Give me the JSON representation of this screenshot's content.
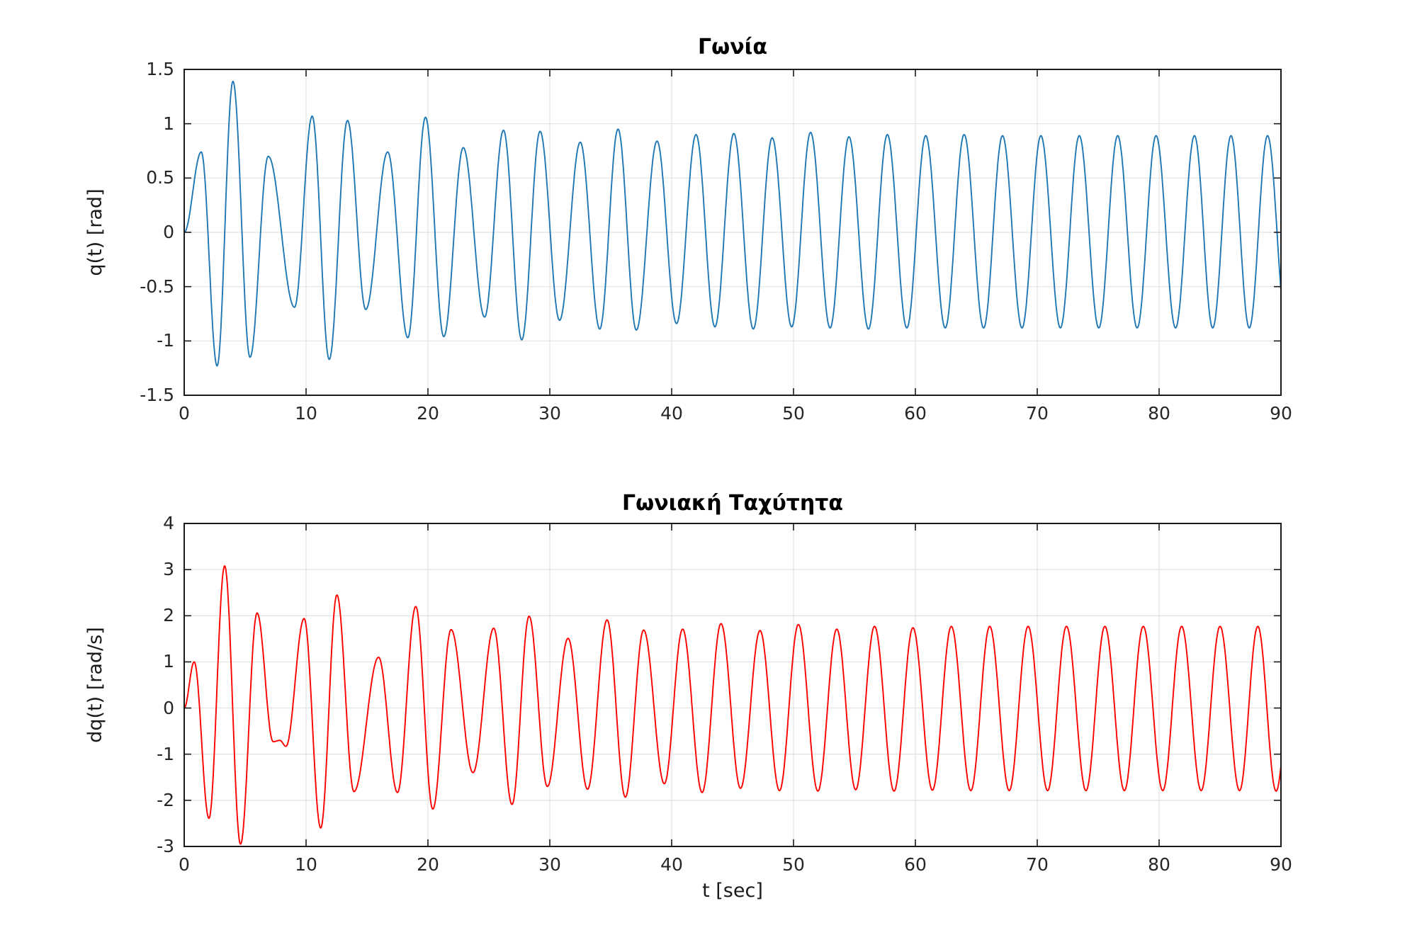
{
  "figure": {
    "background_color": "#ffffff",
    "axis_color": "#1a1a1a",
    "grid_color": "#e2e2e2",
    "tick_label_color": "#262626"
  },
  "chart_data": [
    {
      "type": "line",
      "title": "Γωνία",
      "ylabel": "q(t) [rad]",
      "xlabel": "",
      "series_name": "q(t)",
      "line_color": "#1f77b4",
      "xlim": [
        0,
        90
      ],
      "ylim": [
        -1.5,
        1.5
      ],
      "xtick_labels": [
        "0",
        "10",
        "20",
        "30",
        "40",
        "50",
        "60",
        "70",
        "80",
        "90"
      ],
      "xtick_values": [
        0,
        10,
        20,
        30,
        40,
        50,
        60,
        70,
        80,
        90
      ],
      "ytick_labels": [
        "1.5",
        "1",
        "0.5",
        "0",
        "-0.5",
        "-1",
        "-1.5"
      ],
      "ytick_values": [
        1.5,
        1,
        0.5,
        0,
        -0.5,
        -1,
        -1.5
      ],
      "grid": true,
      "box": true,
      "tick_direction": "in",
      "note": "keypoints are curve extrema [t sec, q rad]; curve is sinusoidally interpolated between extrema and clipped to t in [0,90]",
      "keypoints": [
        [
          0,
          0
        ],
        [
          1.4,
          0.74
        ],
        [
          2.7,
          -1.23
        ],
        [
          4.0,
          1.39
        ],
        [
          5.4,
          -1.15
        ],
        [
          6.9,
          0.7
        ],
        [
          9.05,
          -0.69
        ],
        [
          10.5,
          1.07
        ],
        [
          11.9,
          -1.17
        ],
        [
          13.4,
          1.03
        ],
        [
          14.9,
          -0.71
        ],
        [
          16.7,
          0.74
        ],
        [
          18.35,
          -0.97
        ],
        [
          19.8,
          1.06
        ],
        [
          21.3,
          -0.96
        ],
        [
          22.9,
          0.78
        ],
        [
          24.65,
          -0.78
        ],
        [
          26.2,
          0.94
        ],
        [
          27.7,
          -0.99
        ],
        [
          29.2,
          0.93
        ],
        [
          30.8,
          -0.81
        ],
        [
          32.5,
          0.83
        ],
        [
          34.1,
          -0.89
        ],
        [
          35.6,
          0.95
        ],
        [
          37.1,
          -0.9
        ],
        [
          38.8,
          0.84
        ],
        [
          40.4,
          -0.84
        ],
        [
          42.0,
          0.9
        ],
        [
          43.55,
          -0.87
        ],
        [
          45.1,
          0.91
        ],
        [
          46.7,
          -0.89
        ],
        [
          48.25,
          0.87
        ],
        [
          49.85,
          -0.87
        ],
        [
          51.4,
          0.92
        ],
        [
          53.0,
          -0.88
        ],
        [
          54.55,
          0.88
        ],
        [
          56.15,
          -0.89
        ],
        [
          57.7,
          0.9
        ],
        [
          59.3,
          -0.88
        ],
        [
          60.85,
          0.89
        ],
        [
          62.45,
          -0.88
        ],
        [
          64.0,
          0.9
        ],
        [
          65.6,
          -0.88
        ],
        [
          67.15,
          0.89
        ],
        [
          68.75,
          -0.88
        ],
        [
          70.3,
          0.89
        ],
        [
          71.9,
          -0.88
        ],
        [
          73.45,
          0.89
        ],
        [
          75.05,
          -0.88
        ],
        [
          76.6,
          0.89
        ],
        [
          78.2,
          -0.88
        ],
        [
          79.75,
          0.89
        ],
        [
          81.35,
          -0.88
        ],
        [
          82.9,
          0.89
        ],
        [
          84.4,
          -0.88
        ],
        [
          85.9,
          0.89
        ],
        [
          87.4,
          -0.88
        ],
        [
          88.9,
          0.89
        ],
        [
          90.45,
          -0.88
        ]
      ]
    },
    {
      "type": "line",
      "title": "Γωνιακή Ταχύτητα",
      "ylabel": "dq(t) [rad/s]",
      "xlabel": "t [sec]",
      "series_name": "dq(t)",
      "line_color": "#ff0000",
      "xlim": [
        0,
        90
      ],
      "ylim": [
        -3,
        4
      ],
      "xtick_labels": [
        "0",
        "10",
        "20",
        "30",
        "40",
        "50",
        "60",
        "70",
        "80",
        "90"
      ],
      "xtick_values": [
        0,
        10,
        20,
        30,
        40,
        50,
        60,
        70,
        80,
        90
      ],
      "ytick_labels": [
        "4",
        "3",
        "2",
        "1",
        "0",
        "-1",
        "-2",
        "-3"
      ],
      "ytick_values": [
        4,
        3,
        2,
        1,
        0,
        -1,
        -2,
        -3
      ],
      "grid": true,
      "box": true,
      "tick_direction": "in",
      "note": "keypoints are curve extrema [t sec, dq rad/s]; curve is sinusoidally interpolated between extrema and clipped to t in [0,90]",
      "keypoints": [
        [
          0,
          0
        ],
        [
          0.82,
          1.0
        ],
        [
          2.03,
          -2.39
        ],
        [
          3.32,
          3.08
        ],
        [
          4.62,
          -2.95
        ],
        [
          5.98,
          2.06
        ],
        [
          7.3,
          -0.73
        ],
        [
          7.85,
          -0.7
        ],
        [
          8.35,
          -0.83
        ],
        [
          9.84,
          1.94
        ],
        [
          11.2,
          -2.6
        ],
        [
          12.53,
          2.45
        ],
        [
          13.93,
          -1.81
        ],
        [
          15.95,
          1.1
        ],
        [
          17.5,
          -1.83
        ],
        [
          19.0,
          2.2
        ],
        [
          20.4,
          -2.19
        ],
        [
          21.9,
          1.7
        ],
        [
          23.7,
          -1.4
        ],
        [
          25.4,
          1.73
        ],
        [
          26.9,
          -2.09
        ],
        [
          28.3,
          1.99
        ],
        [
          29.8,
          -1.7
        ],
        [
          31.5,
          1.51
        ],
        [
          33.1,
          -1.76
        ],
        [
          34.7,
          1.91
        ],
        [
          36.2,
          -1.93
        ],
        [
          37.7,
          1.69
        ],
        [
          39.4,
          -1.64
        ],
        [
          40.9,
          1.71
        ],
        [
          42.5,
          -1.83
        ],
        [
          44.05,
          1.83
        ],
        [
          45.65,
          -1.74
        ],
        [
          47.25,
          1.68
        ],
        [
          48.85,
          -1.79
        ],
        [
          50.4,
          1.81
        ],
        [
          52.0,
          -1.8
        ],
        [
          53.55,
          1.71
        ],
        [
          55.1,
          -1.77
        ],
        [
          56.65,
          1.77
        ],
        [
          58.25,
          -1.8
        ],
        [
          59.8,
          1.74
        ],
        [
          61.4,
          -1.78
        ],
        [
          62.95,
          1.77
        ],
        [
          64.55,
          -1.79
        ],
        [
          66.1,
          1.77
        ],
        [
          67.7,
          -1.79
        ],
        [
          69.25,
          1.77
        ],
        [
          70.85,
          -1.79
        ],
        [
          72.4,
          1.77
        ],
        [
          74.0,
          -1.79
        ],
        [
          75.55,
          1.77
        ],
        [
          77.15,
          -1.79
        ],
        [
          78.7,
          1.77
        ],
        [
          80.3,
          -1.79
        ],
        [
          81.85,
          1.77
        ],
        [
          83.45,
          -1.79
        ],
        [
          85.0,
          1.77
        ],
        [
          86.6,
          -1.79
        ],
        [
          88.1,
          1.77
        ],
        [
          89.6,
          -1.8
        ],
        [
          91.15,
          1.76
        ]
      ]
    }
  ]
}
